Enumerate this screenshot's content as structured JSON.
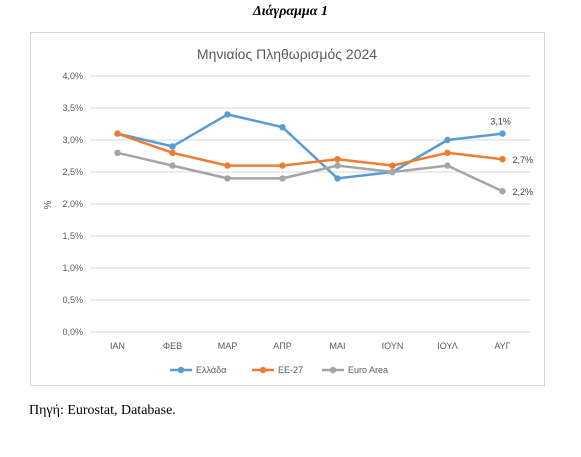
{
  "caption": "Διάγραμμα 1",
  "source": "Πηγή: Eurostat, Database.",
  "chart_data": {
    "type": "line",
    "title": "Μηνιαίος Πληθωρισμός 2024",
    "xlabel": "",
    "ylabel": "%",
    "categories": [
      "ΙΑΝ",
      "ΦΕΒ",
      "ΜΑΡ",
      "ΑΠΡ",
      "ΜΑΙ",
      "ΙΟΥΝ",
      "ΙΟΥΛ",
      "ΑΥΓ"
    ],
    "ylim": [
      0,
      4.0
    ],
    "yticks": [
      "0,0%",
      "0,5%",
      "1,0%",
      "1,5%",
      "2,0%",
      "2,5%",
      "3,0%",
      "3,5%",
      "4,0%"
    ],
    "grid": true,
    "legend_position": "bottom",
    "series": [
      {
        "name": "Ελλάδα",
        "color": "#5b9bd5",
        "values": [
          3.1,
          2.9,
          3.4,
          3.2,
          2.4,
          2.5,
          3.0,
          3.1
        ],
        "end_label": "3,1%"
      },
      {
        "name": "ΕΕ-27",
        "color": "#ed7d31",
        "values": [
          3.1,
          2.8,
          2.6,
          2.6,
          2.7,
          2.6,
          2.8,
          2.7
        ],
        "end_label": "2,7%"
      },
      {
        "name": "Euro Area",
        "color": "#a5a5a5",
        "values": [
          2.8,
          2.6,
          2.4,
          2.4,
          2.6,
          2.5,
          2.6,
          2.2
        ],
        "end_label": "2,2%"
      }
    ]
  }
}
